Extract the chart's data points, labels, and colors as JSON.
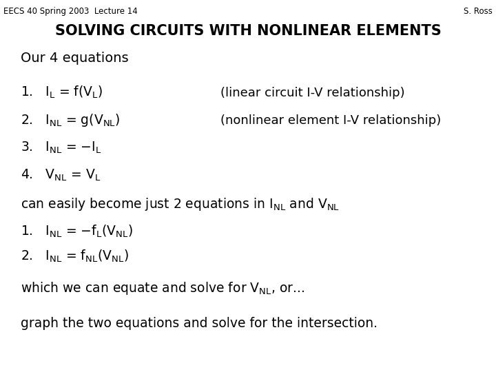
{
  "background_color": "#ffffff",
  "header_left": "EECS 40 Spring 2003  Lecture 14",
  "header_right": "S. Ross",
  "header_fontsize": 8.5,
  "title": "SOLVING CIRCUITS WITH NONLINEAR ELEMENTS",
  "title_fontsize": 15,
  "body_fontsize": 13.5,
  "small_body_fontsize": 13
}
